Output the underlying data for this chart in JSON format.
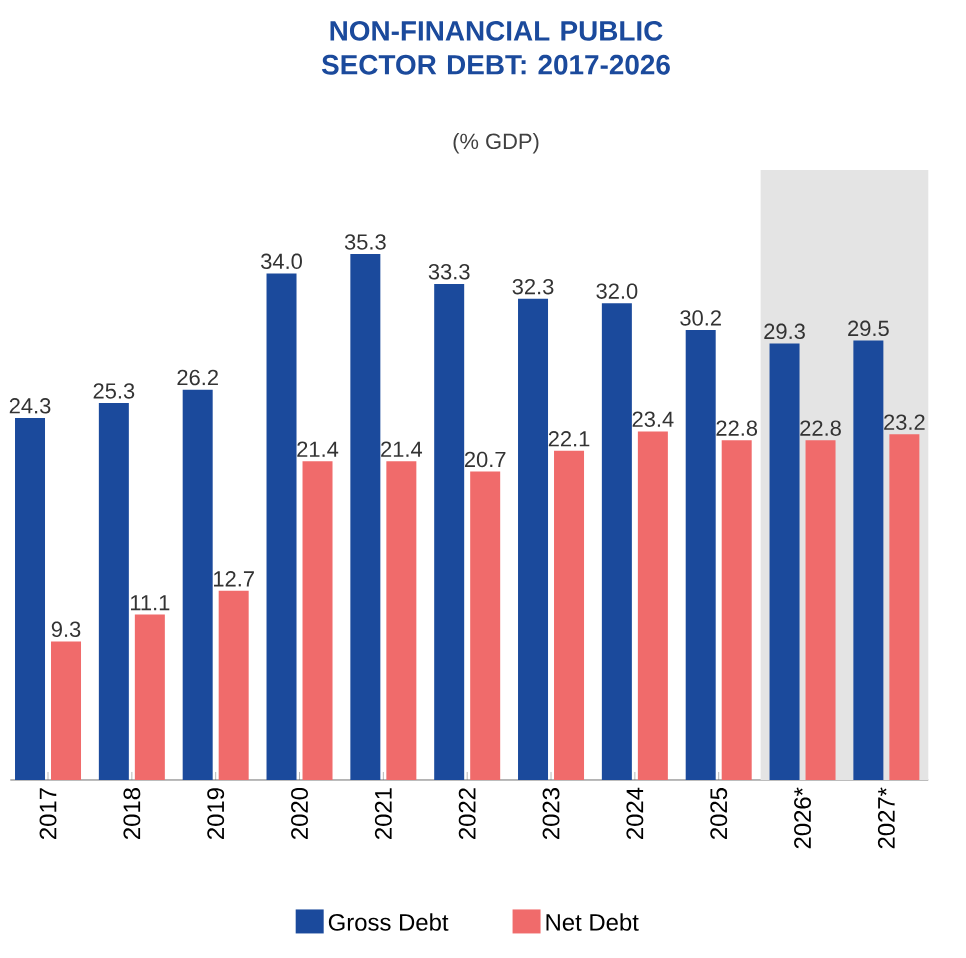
{
  "chart_data": {
    "type": "bar",
    "title": "NON-FINANCIAL PUBLIC SECTOR DEBT: 2017-2026",
    "subtitle": "(% GDP)",
    "categories": [
      "2017",
      "2018",
      "2019",
      "2020",
      "2021",
      "2022",
      "2023",
      "2024",
      "2025",
      "2026*",
      "2027*"
    ],
    "series": [
      {
        "name": "Gross Debt",
        "color": "#1b4a9c",
        "values": [
          24.3,
          25.3,
          26.2,
          34.0,
          35.3,
          33.3,
          32.3,
          32.0,
          30.2,
          29.3,
          29.5
        ],
        "value_labels": [
          "24.3",
          "25.3",
          "26.2",
          "34.0",
          "35.3",
          "33.3",
          "32.3",
          "32.0",
          "30.2",
          "29.3",
          "29.5"
        ]
      },
      {
        "name": "Net Debt",
        "color": "#f06b6b",
        "values": [
          9.3,
          11.1,
          12.7,
          21.4,
          21.4,
          20.7,
          22.1,
          23.4,
          22.8,
          22.8,
          23.2
        ],
        "value_labels": [
          "9.3",
          "11.1",
          "12.7",
          "21.4",
          "21.4",
          "20.7",
          "22.1",
          "23.4",
          "22.8",
          "22.8",
          "23.2"
        ]
      }
    ],
    "bands": [
      {
        "axis": "x",
        "from": "2026*",
        "to": "2027*",
        "color": "#e4e4e4"
      }
    ],
    "legend": "bottom"
  }
}
